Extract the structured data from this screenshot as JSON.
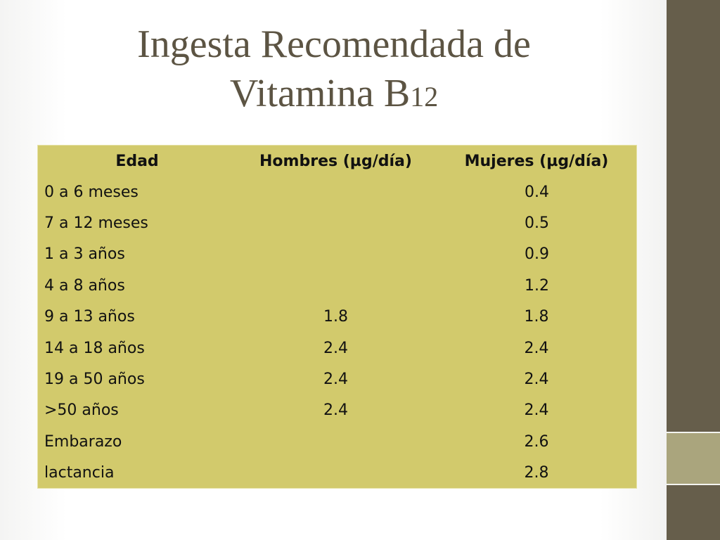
{
  "title": {
    "line1": "Ingesta Recomendada de",
    "line2": "Vitamina B",
    "subscript": "12"
  },
  "table": {
    "headers": [
      "Edad",
      "Hombres (µg/día)",
      "Mujeres (µg/día)"
    ],
    "rows": [
      {
        "edad": "0 a 6 meses",
        "combined": "0.4"
      },
      {
        "edad": "7 a 12 meses",
        "combined": "0.5"
      },
      {
        "edad": "1 a 3 años",
        "combined": "0.9"
      },
      {
        "edad": "4 a 8 años",
        "combined": "1.2"
      },
      {
        "edad": "9 a 13 años",
        "hombres": "1.8",
        "mujeres": "1.8"
      },
      {
        "edad": "14 a 18 años",
        "hombres": "2.4",
        "mujeres": "2.4"
      },
      {
        "edad": "19 a 50 años",
        "hombres": "2.4",
        "mujeres": "2.4"
      },
      {
        "edad": ">50 años",
        "hombres": "2.4",
        "mujeres": "2.4"
      },
      {
        "edad": "Embarazo",
        "hombres": "",
        "mujeres": "2.6"
      },
      {
        "edad": "lactancia",
        "hombres": "",
        "mujeres": "2.8"
      }
    ]
  },
  "colors": {
    "table_bg": "#d2ca6c",
    "side_bar": "#665e4b",
    "side_accent": "#aaa57d",
    "title_text": "#5c5443"
  }
}
